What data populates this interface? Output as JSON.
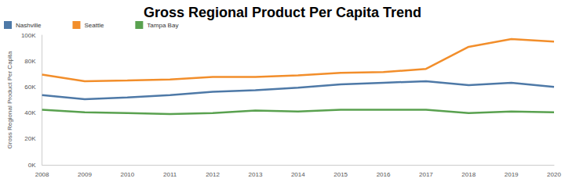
{
  "chart_data": {
    "type": "line",
    "title": "Gross Regional Product Per Capita Trend",
    "y_label": "Gross Regional Product Per Capita",
    "categories": [
      "2008",
      "2009",
      "2010",
      "2011",
      "2012",
      "2013",
      "2014",
      "2015",
      "2016",
      "2017",
      "2018",
      "2019",
      "2020"
    ],
    "series": [
      {
        "name": "Nashville",
        "color": "#4e79a7",
        "values": [
          53800,
          50600,
          51900,
          53800,
          56300,
          57600,
          59500,
          62000,
          63300,
          64500,
          61400,
          63300,
          60100
        ]
      },
      {
        "name": "Seattle",
        "color": "#f28e2b",
        "values": [
          69600,
          64500,
          65000,
          65800,
          67700,
          67700,
          69000,
          70900,
          71500,
          74000,
          91000,
          97000,
          95000
        ]
      },
      {
        "name": "Tampa Bay",
        "color": "#59a14f",
        "values": [
          42400,
          40500,
          39900,
          39200,
          39900,
          41800,
          41100,
          42400,
          42400,
          42400,
          39900,
          41100,
          40500
        ]
      }
    ],
    "ylim": [
      0,
      100000
    ],
    "yticks": [
      {
        "value": 0,
        "label": "0K"
      },
      {
        "value": 20000,
        "label": "20K"
      },
      {
        "value": 40000,
        "label": "40K"
      },
      {
        "value": 60000,
        "label": "60K"
      },
      {
        "value": 80000,
        "label": "80K"
      },
      {
        "value": 100000,
        "label": "100K"
      }
    ],
    "grid": false,
    "legend": "top-left"
  }
}
